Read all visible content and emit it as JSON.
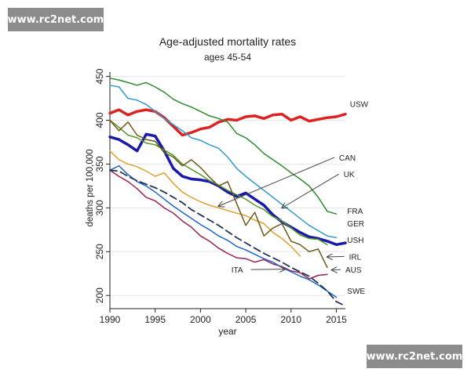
{
  "watermarks": {
    "top_text": "www.rc2net.com",
    "bottom_text": "www.rc2net.com"
  },
  "chart_data": {
    "type": "line",
    "title": "Age-adjusted mortality rates",
    "subtitle": "ages 45-54",
    "xlabel": "year",
    "ylabel": "deaths per 100,000",
    "xlim": [
      1990,
      2016
    ],
    "ylim": [
      185,
      455
    ],
    "xticks": [
      1990,
      1995,
      2000,
      2005,
      2010,
      2015
    ],
    "yticks": [
      200,
      250,
      300,
      350,
      400,
      450
    ],
    "grid": true,
    "legend": "none",
    "series": [
      {
        "name": "USW",
        "color": "#dd2222",
        "width": 3.5,
        "dash": "",
        "x": [
          1990,
          1991,
          1992,
          1993,
          1994,
          1995,
          1996,
          1997,
          1998,
          1999,
          2000,
          2001,
          2002,
          2003,
          2004,
          2005,
          2006,
          2007,
          2008,
          2009,
          2010,
          2011,
          2012,
          2013,
          2014,
          2015,
          2016
        ],
        "y": [
          408,
          412,
          406,
          410,
          412,
          410,
          403,
          393,
          383,
          386,
          390,
          392,
          398,
          401,
          400,
          404,
          405,
          402,
          406,
          407,
          400,
          404,
          399,
          401,
          403,
          404,
          407
        ]
      },
      {
        "name": "FRA",
        "color": "#2e8b2e",
        "width": 1.5,
        "dash": "",
        "x": [
          1990,
          1991,
          1992,
          1993,
          1994,
          1995,
          1996,
          1997,
          1998,
          1999,
          2000,
          2001,
          2002,
          2003,
          2004,
          2005,
          2006,
          2007,
          2008,
          2009,
          2010,
          2011,
          2012,
          2013,
          2014,
          2015
        ],
        "y": [
          448,
          446,
          443,
          440,
          443,
          438,
          432,
          424,
          419,
          415,
          410,
          405,
          402,
          398,
          385,
          380,
          372,
          362,
          355,
          348,
          340,
          333,
          325,
          312,
          296,
          293
        ]
      },
      {
        "name": "GER",
        "color": "#3399cc",
        "width": 1.5,
        "dash": "",
        "x": [
          1990,
          1991,
          1992,
          1993,
          1994,
          1995,
          1996,
          1997,
          1998,
          1999,
          2000,
          2001,
          2002,
          2003,
          2004,
          2005,
          2006,
          2007,
          2008,
          2009,
          2010,
          2011,
          2012,
          2013,
          2014,
          2015
        ],
        "y": [
          440,
          438,
          425,
          423,
          418,
          410,
          402,
          395,
          388,
          380,
          377,
          372,
          368,
          358,
          345,
          336,
          328,
          320,
          312,
          304,
          296,
          288,
          280,
          274,
          268,
          266
        ]
      },
      {
        "name": "USH",
        "color": "#1a1aaa",
        "width": 3.5,
        "dash": "",
        "x": [
          1990,
          1991,
          1992,
          1993,
          1994,
          1995,
          1996,
          1997,
          1998,
          1999,
          2000,
          2001,
          2002,
          2003,
          2004,
          2005,
          2006,
          2007,
          2008,
          2009,
          2010,
          2011,
          2012,
          2013,
          2014,
          2015,
          2016
        ],
        "y": [
          381,
          378,
          372,
          365,
          384,
          382,
          365,
          345,
          336,
          333,
          332,
          330,
          325,
          318,
          313,
          317,
          310,
          303,
          292,
          284,
          278,
          272,
          267,
          265,
          262,
          258,
          260
        ]
      },
      {
        "name": "CAN",
        "color": "#e0a030",
        "width": 1.5,
        "dash": "",
        "x": [
          1990,
          1991,
          1992,
          1993,
          1994,
          1995,
          1996,
          1997,
          1998,
          1999,
          2000,
          2001,
          2002,
          2003,
          2004,
          2005,
          2006,
          2007,
          2008,
          2009,
          2010,
          2011
        ],
        "y": [
          365,
          355,
          350,
          347,
          342,
          336,
          340,
          328,
          318,
          312,
          307,
          303,
          300,
          297,
          294,
          291,
          286,
          282,
          272,
          265,
          256,
          245
        ]
      },
      {
        "name": "UK",
        "color": "#55992b",
        "width": 1.5,
        "dash": "",
        "x": [
          1990,
          1991,
          1992,
          1993,
          1994,
          1995,
          1996,
          1997,
          1998,
          1999,
          2000,
          2001,
          2002,
          2003,
          2004,
          2005,
          2006,
          2007,
          2008,
          2009,
          2010,
          2011,
          2012,
          2013,
          2014
        ],
        "y": [
          400,
          392,
          383,
          380,
          374,
          372,
          366,
          360,
          350,
          344,
          338,
          331,
          326,
          320,
          315,
          310,
          303,
          298,
          290,
          285,
          277,
          269,
          265,
          264,
          258
        ]
      },
      {
        "name": "IRL",
        "color": "#6b5a1a",
        "width": 1.5,
        "dash": "",
        "x": [
          1990,
          1991,
          1992,
          1993,
          1994,
          1995,
          1996,
          1997,
          1998,
          1999,
          2000,
          2001,
          2002,
          2003,
          2004,
          2005,
          2006,
          2007,
          2008,
          2009,
          2010,
          2011,
          2012,
          2013,
          2014
        ],
        "y": [
          400,
          388,
          398,
          383,
          378,
          376,
          363,
          358,
          348,
          355,
          346,
          335,
          325,
          330,
          305,
          280,
          295,
          268,
          277,
          282,
          262,
          258,
          250,
          253,
          232
        ]
      },
      {
        "name": "AUS",
        "color": "#992255",
        "width": 1.5,
        "dash": "",
        "x": [
          1990,
          1991,
          1992,
          1993,
          1994,
          1995,
          1996,
          1997,
          1998,
          1999,
          2000,
          2001,
          2002,
          2003,
          2004,
          2005,
          2006,
          2007,
          2008,
          2009,
          2010,
          2011,
          2012,
          2013,
          2014
        ],
        "y": [
          343,
          336,
          330,
          322,
          312,
          308,
          300,
          294,
          285,
          278,
          268,
          262,
          254,
          248,
          243,
          242,
          238,
          241,
          236,
          233,
          228,
          226,
          219,
          223,
          224
        ]
      },
      {
        "name": "ITA",
        "color": "#1f66cc",
        "width": 1.5,
        "dash": "",
        "x": [
          1990,
          1991,
          1992,
          1993,
          1994,
          1995,
          1996,
          1997,
          1998,
          1999,
          2000,
          2001,
          2002,
          2003,
          2004,
          2005,
          2006,
          2007,
          2008,
          2009,
          2010,
          2011,
          2012,
          2013,
          2014,
          2015
        ],
        "y": [
          343,
          348,
          338,
          330,
          325,
          318,
          310,
          302,
          295,
          288,
          281,
          275,
          268,
          263,
          256,
          252,
          247,
          242,
          238,
          232,
          227,
          222,
          218,
          212,
          205,
          198
        ]
      },
      {
        "name": "SWE",
        "color": "#223355",
        "width": 1.8,
        "dash": "9 5",
        "x": [
          1990,
          1991,
          1992,
          1993,
          1994,
          1995,
          1996,
          1997,
          1998,
          1999,
          2000,
          2001,
          2002,
          2003,
          2004,
          2005,
          2006,
          2007,
          2008,
          2009,
          2010,
          2011,
          2012,
          2013,
          2014,
          2015,
          2016
        ],
        "y": [
          343,
          342,
          336,
          331,
          327,
          323,
          318,
          312,
          306,
          298,
          292,
          286,
          280,
          273,
          266,
          260,
          254,
          248,
          243,
          238,
          232,
          227,
          222,
          214,
          205,
          193,
          188
        ]
      }
    ],
    "annotations": [
      {
        "text": "USW",
        "x": 2016.5,
        "y": 415
      },
      {
        "text": "CAN",
        "x": 2015.3,
        "y": 354,
        "arrow_to": [
          2002,
          302
        ]
      },
      {
        "text": "UK",
        "x": 2015.8,
        "y": 335,
        "arrow_to": [
          2009,
          300
        ]
      },
      {
        "text": "FRA",
        "x": 2016.2,
        "y": 293
      },
      {
        "text": "GER",
        "x": 2016.2,
        "y": 279
      },
      {
        "text": "USH",
        "x": 2016.2,
        "y": 260
      },
      {
        "text": "IRL",
        "x": 2016.4,
        "y": 241,
        "arrow_to": [
          2014,
          244
        ]
      },
      {
        "text": "AUS",
        "x": 2016.0,
        "y": 226,
        "arrow_to": [
          2014.5,
          229
        ]
      },
      {
        "text": "ITA",
        "x": 2004.7,
        "y": 226,
        "arrow_to": [
          2009.3,
          230
        ]
      },
      {
        "text": "SWE",
        "x": 2016.2,
        "y": 202
      }
    ]
  }
}
